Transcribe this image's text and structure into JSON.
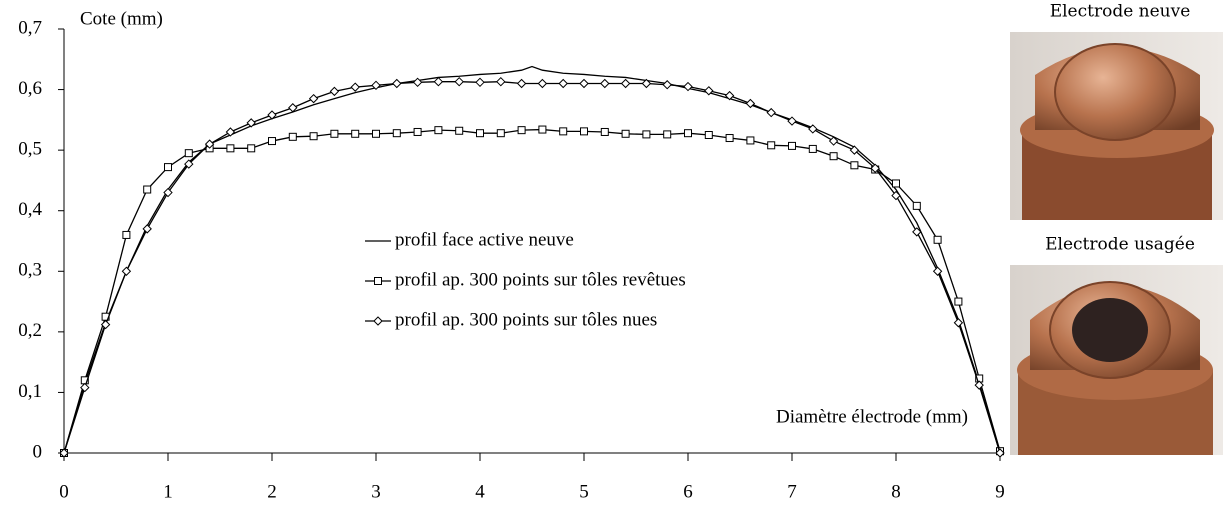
{
  "chart_data": {
    "type": "line",
    "y_label": "Cote (mm)",
    "x_label": "Diamètre électrode (mm)",
    "xlim": [
      0,
      9
    ],
    "xticks": [
      0,
      1,
      2,
      3,
      4,
      5,
      6,
      7,
      8,
      9
    ],
    "ylim": [
      0,
      0.7
    ],
    "yticks": [
      0,
      {
        "value": 0.1,
        "label": "0,1"
      },
      {
        "value": 0.2,
        "label": "0,2"
      },
      {
        "value": 0.3,
        "label": "0,3"
      },
      {
        "value": 0.4,
        "label": "0,4"
      },
      {
        "value": 0.5,
        "label": "0,5"
      },
      {
        "value": 0.6,
        "label": "0,6"
      },
      {
        "value": 0.7,
        "label": "0,7"
      }
    ],
    "grid": false,
    "series": [
      {
        "name": "profil face active neuve",
        "color": "#000000",
        "marker": "none",
        "x": [
          0,
          0.2,
          0.4,
          0.6,
          0.8,
          1.0,
          1.2,
          1.4,
          1.6,
          1.8,
          2.0,
          2.2,
          2.4,
          2.6,
          2.8,
          3.0,
          3.2,
          3.4,
          3.6,
          3.8,
          4.0,
          4.2,
          4.4,
          4.5,
          4.6,
          4.8,
          5.0,
          5.2,
          5.4,
          5.6,
          5.8,
          6.0,
          6.2,
          6.4,
          6.6,
          6.8,
          7.0,
          7.2,
          7.4,
          7.6,
          7.8,
          8.0,
          8.2,
          8.4,
          8.6,
          8.8,
          9.0
        ],
        "values": [
          0,
          0.115,
          0.215,
          0.3,
          0.375,
          0.435,
          0.48,
          0.51,
          0.525,
          0.54,
          0.552,
          0.563,
          0.575,
          0.585,
          0.595,
          0.603,
          0.61,
          0.615,
          0.62,
          0.622,
          0.625,
          0.627,
          0.632,
          0.638,
          0.632,
          0.627,
          0.625,
          0.622,
          0.62,
          0.615,
          0.61,
          0.602,
          0.595,
          0.585,
          0.575,
          0.562,
          0.55,
          0.537,
          0.522,
          0.505,
          0.475,
          0.435,
          0.38,
          0.305,
          0.22,
          0.115,
          0
        ]
      },
      {
        "name": "profil ap. 300 points sur tôles revêtues",
        "color": "#000000",
        "marker": "square",
        "x": [
          0,
          0.2,
          0.4,
          0.6,
          0.8,
          1.0,
          1.2,
          1.4,
          1.6,
          1.8,
          2.0,
          2.2,
          2.4,
          2.6,
          2.8,
          3.0,
          3.2,
          3.4,
          3.6,
          3.8,
          4.0,
          4.2,
          4.4,
          4.6,
          4.8,
          5.0,
          5.2,
          5.4,
          5.6,
          5.8,
          6.0,
          6.2,
          6.4,
          6.6,
          6.8,
          7.0,
          7.2,
          7.4,
          7.6,
          7.8,
          8.0,
          8.2,
          8.4,
          8.6,
          8.8,
          9.0
        ],
        "values": [
          0,
          0.12,
          0.225,
          0.36,
          0.435,
          0.472,
          0.495,
          0.503,
          0.503,
          0.503,
          0.515,
          0.522,
          0.523,
          0.527,
          0.527,
          0.527,
          0.528,
          0.53,
          0.533,
          0.532,
          0.528,
          0.528,
          0.533,
          0.534,
          0.531,
          0.531,
          0.53,
          0.527,
          0.526,
          0.526,
          0.528,
          0.525,
          0.52,
          0.516,
          0.508,
          0.507,
          0.502,
          0.49,
          0.475,
          0.468,
          0.445,
          0.408,
          0.352,
          0.25,
          0.123,
          0.003
        ]
      },
      {
        "name": "profil ap. 300 points sur tôles nues",
        "color": "#000000",
        "marker": "diamond",
        "x": [
          0,
          0.2,
          0.4,
          0.6,
          0.8,
          1.0,
          1.2,
          1.4,
          1.6,
          1.8,
          2.0,
          2.2,
          2.4,
          2.6,
          2.8,
          3.0,
          3.2,
          3.4,
          3.6,
          3.8,
          4.0,
          4.2,
          4.4,
          4.6,
          4.8,
          5.0,
          5.2,
          5.4,
          5.6,
          5.8,
          6.0,
          6.2,
          6.4,
          6.6,
          6.8,
          7.0,
          7.2,
          7.4,
          7.6,
          7.8,
          8.0,
          8.2,
          8.4,
          8.6,
          8.8,
          9.0
        ],
        "values": [
          0,
          0.108,
          0.212,
          0.3,
          0.37,
          0.43,
          0.477,
          0.51,
          0.53,
          0.545,
          0.558,
          0.57,
          0.585,
          0.597,
          0.604,
          0.607,
          0.61,
          0.612,
          0.613,
          0.613,
          0.612,
          0.613,
          0.61,
          0.61,
          0.61,
          0.61,
          0.61,
          0.61,
          0.61,
          0.608,
          0.605,
          0.598,
          0.59,
          0.577,
          0.562,
          0.548,
          0.535,
          0.515,
          0.5,
          0.47,
          0.425,
          0.365,
          0.3,
          0.215,
          0.112,
          0
        ]
      }
    ]
  },
  "images": [
    {
      "caption": "Electrode neuve"
    },
    {
      "caption": "Electrode usagée"
    }
  ]
}
